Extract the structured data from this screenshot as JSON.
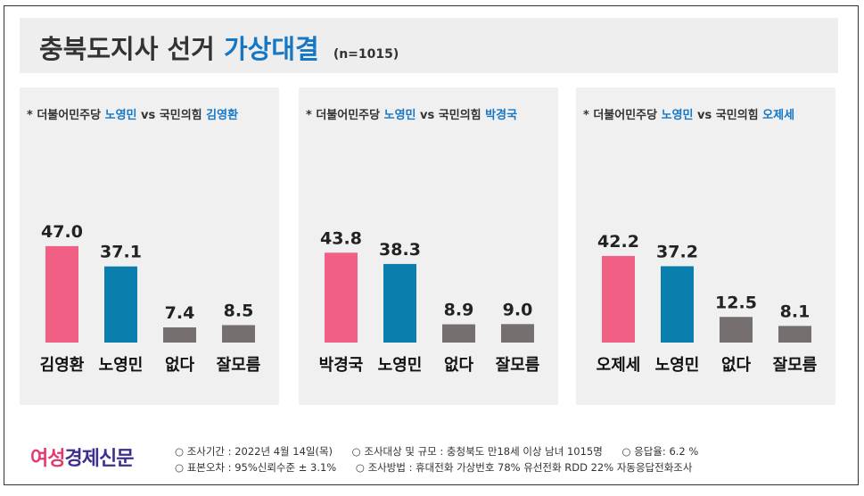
{
  "title": {
    "main": "충북도지사 선거",
    "accent": "가상대결",
    "sample": "(n=1015)"
  },
  "colors": {
    "democratic": "#f25f85",
    "nohyoungmin": "#0a7fad",
    "none": "#756f70",
    "accent_text": "#1677c5"
  },
  "chart_data": [
    {
      "type": "bar",
      "header": {
        "prefix": "* 더불어민주당",
        "candidate_a": "노영민",
        "vs": "vs 국민의힘",
        "candidate_b": "김영환"
      },
      "categories": [
        "김영환",
        "노영민",
        "없다",
        "잘모름"
      ],
      "values": [
        47.0,
        37.1,
        7.4,
        8.5
      ],
      "value_labels": [
        "47.0",
        "37.1",
        "7.4",
        "8.5"
      ],
      "colors": [
        "#f25f85",
        "#0a7fad",
        "#756f70",
        "#756f70"
      ],
      "ylim": [
        0,
        60
      ]
    },
    {
      "type": "bar",
      "header": {
        "prefix": "* 더불어민주당",
        "candidate_a": "노영민",
        "vs": "vs 국민의힘",
        "candidate_b": "박경국"
      },
      "categories": [
        "박경국",
        "노영민",
        "없다",
        "잘모름"
      ],
      "values": [
        43.8,
        38.3,
        8.9,
        9.0
      ],
      "value_labels": [
        "43.8",
        "38.3",
        "8.9",
        "9.0"
      ],
      "colors": [
        "#f25f85",
        "#0a7fad",
        "#756f70",
        "#756f70"
      ],
      "ylim": [
        0,
        60
      ]
    },
    {
      "type": "bar",
      "header": {
        "prefix": "* 더불어민주당",
        "candidate_a": "노영민",
        "vs": "vs 국민의힘",
        "candidate_b": "오제세"
      },
      "categories": [
        "오제세",
        "노영민",
        "없다",
        "잘모름"
      ],
      "values": [
        42.2,
        37.2,
        12.5,
        8.1
      ],
      "value_labels": [
        "42.2",
        "37.2",
        "12.5",
        "8.1"
      ],
      "colors": [
        "#f25f85",
        "#0a7fad",
        "#756f70",
        "#756f70"
      ],
      "ylim": [
        0,
        60
      ]
    }
  ],
  "footer": {
    "logo_a": "여성",
    "logo_b": "경제신문",
    "row1": [
      "○ 조사기간 : 2022년 4월 14일(목)",
      "○ 조사대상 및 규모 : 충청북도 만18세 이상 남녀 1015명",
      "○ 응답율: 6.2 %"
    ],
    "row2": [
      "○ 표본오차 : 95%신뢰수준 ± 3.1%",
      "○ 조사방법 : 휴대전화 가상번호 78% 유선전화 RDD 22% 자동응답전화조사"
    ]
  }
}
